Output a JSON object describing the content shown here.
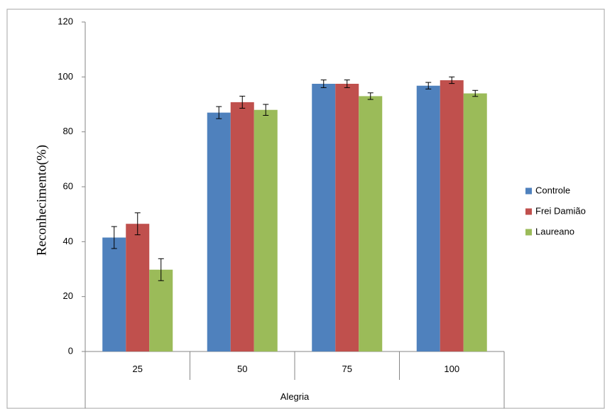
{
  "chart_data": {
    "type": "bar",
    "categories": [
      "25",
      "50",
      "75",
      "100"
    ],
    "series": [
      {
        "name": "Controle",
        "color": "#4F81BD",
        "values": [
          41.5,
          87,
          97.5,
          96.8
        ],
        "errors": [
          4,
          2.2,
          1.4,
          1.2
        ]
      },
      {
        "name": "Frei Damião",
        "color": "#C0504D",
        "values": [
          46.5,
          90.8,
          97.5,
          98.8
        ],
        "errors": [
          4,
          2.2,
          1.4,
          1.2
        ]
      },
      {
        "name": "Laureano",
        "color": "#9BBB59",
        "values": [
          29.8,
          88,
          93,
          94
        ],
        "errors": [
          4,
          2,
          1.2,
          1.1
        ]
      }
    ],
    "xlabel": "Alegria",
    "ylabel": "Reconhecimento(%)",
    "ylim": [
      0,
      120
    ],
    "yticks": [
      "0",
      "20",
      "40",
      "60",
      "80",
      "100",
      "120"
    ],
    "grid": false,
    "legend_position": "right"
  }
}
